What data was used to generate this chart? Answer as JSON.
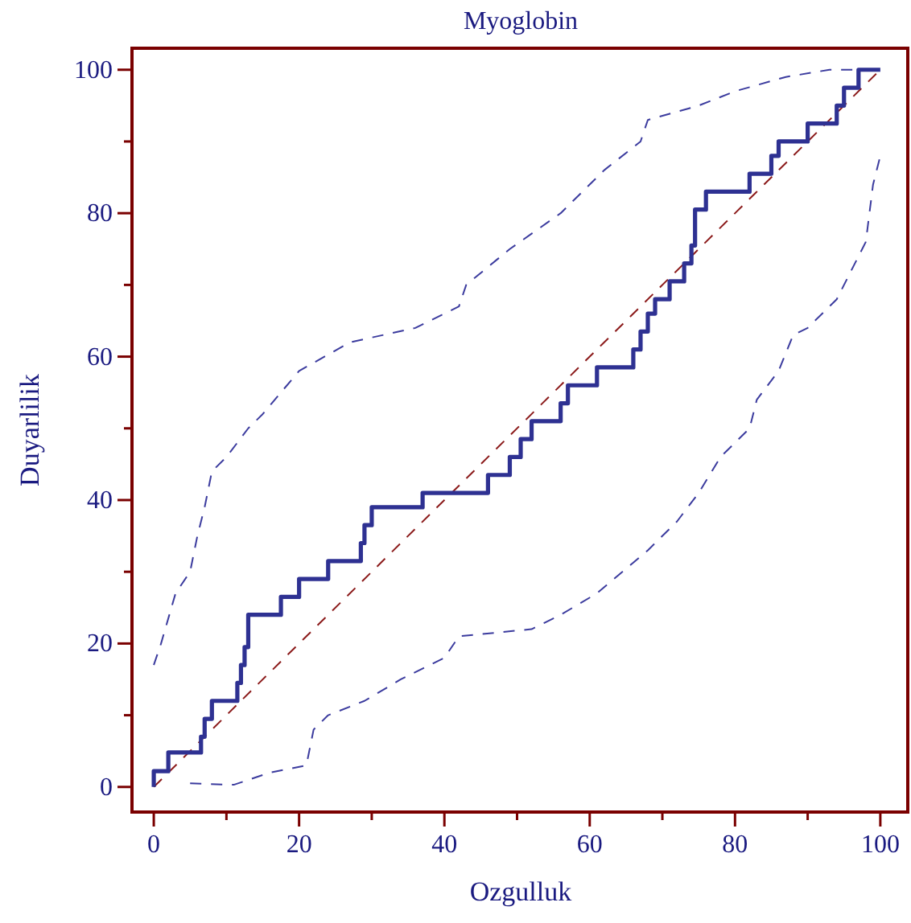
{
  "chart_data": {
    "type": "line",
    "title": "Myoglobin",
    "xlabel": "Ozgulluk",
    "ylabel": "Duyarlilik",
    "xlim": [
      -3,
      104
    ],
    "ylim": [
      -3.5,
      103
    ],
    "xticks": [
      0,
      {
        "value": 10,
        "label": null
      },
      20,
      {
        "value": 30,
        "label": null
      },
      40,
      {
        "value": 50,
        "label": null
      },
      60,
      {
        "value": 70,
        "label": null
      },
      80,
      {
        "value": 90,
        "label": null
      },
      100
    ],
    "yticks": [
      0,
      {
        "value": 10,
        "label": null
      },
      20,
      {
        "value": 30,
        "label": null
      },
      40,
      {
        "value": 50,
        "label": null
      },
      60,
      {
        "value": 70,
        "label": null
      },
      80,
      {
        "value": 90,
        "label": null
      },
      100
    ],
    "grid": false,
    "marker": "none",
    "series": [
      {
        "color": "#8b1a1a",
        "line_style": "dashed",
        "x": [
          0,
          100
        ],
        "values": [
          0,
          100
        ]
      },
      {
        "color": "#3b3b9e",
        "line_style": "dashed",
        "x": [
          0,
          1,
          3,
          5,
          6,
          7,
          8,
          10,
          13,
          15,
          20,
          27,
          36,
          42,
          43,
          49,
          56,
          62,
          67,
          68,
          75,
          80,
          87,
          93,
          100
        ],
        "values": [
          17,
          20,
          27,
          30,
          35,
          39,
          44,
          46,
          50,
          52,
          58,
          62,
          64,
          67,
          70,
          75,
          80,
          86,
          90,
          93,
          95,
          97,
          99,
          100,
          100
        ]
      },
      {
        "color": "#3b3b9e",
        "line_style": "dashed",
        "x": [
          5,
          11,
          16,
          21,
          22,
          24,
          29,
          34,
          40,
          42,
          52,
          56,
          61,
          68,
          72,
          75,
          78,
          82,
          83,
          86,
          88,
          90,
          94,
          96,
          98,
          99,
          100
        ],
        "values": [
          0.5,
          0.3,
          2,
          3,
          8,
          10,
          12,
          15,
          18,
          21,
          22,
          24,
          27,
          33,
          37,
          41,
          46,
          50,
          54,
          58,
          63,
          64,
          68,
          72,
          76,
          84,
          88
        ]
      },
      {
        "color": "#2e3192",
        "line_style": "solid",
        "x": [
          0,
          0,
          2,
          2,
          6.5,
          6.5,
          7,
          7,
          8,
          8,
          11.5,
          11.5,
          12,
          12,
          12.5,
          12.5,
          13,
          13,
          17.5,
          17.5,
          20,
          20,
          24,
          24,
          28.5,
          28.5,
          29,
          29,
          30,
          30,
          37,
          37,
          46,
          46,
          49,
          49,
          50.5,
          50.5,
          52,
          52,
          56,
          56,
          57,
          57,
          61,
          61,
          66,
          66,
          67,
          67,
          68,
          68,
          69,
          69,
          71,
          71,
          73,
          73,
          74,
          74,
          74.5,
          74.5,
          76,
          76,
          82,
          82,
          85,
          85,
          86,
          86,
          90,
          90,
          94,
          94,
          95,
          95,
          97,
          97,
          100
        ],
        "values": [
          0,
          2.2,
          2.2,
          4.8,
          4.8,
          7,
          7,
          9.5,
          9.5,
          12,
          12,
          14.5,
          14.5,
          17,
          17,
          19.5,
          19.5,
          24,
          24,
          26.5,
          26.5,
          29,
          29,
          31.5,
          31.5,
          34,
          34,
          36.5,
          36.5,
          39,
          39,
          41,
          41,
          43.5,
          43.5,
          46,
          46,
          48.5,
          48.5,
          51,
          51,
          53.5,
          53.5,
          56,
          56,
          58.5,
          58.5,
          61,
          61,
          63.5,
          63.5,
          66,
          66,
          68,
          68,
          70.5,
          70.5,
          73,
          73,
          75.5,
          75.5,
          80.5,
          80.5,
          83,
          83,
          85.5,
          85.5,
          88,
          88,
          90,
          90,
          92.5,
          92.5,
          95,
          95,
          97.5,
          97.5,
          100,
          100
        ]
      }
    ]
  }
}
